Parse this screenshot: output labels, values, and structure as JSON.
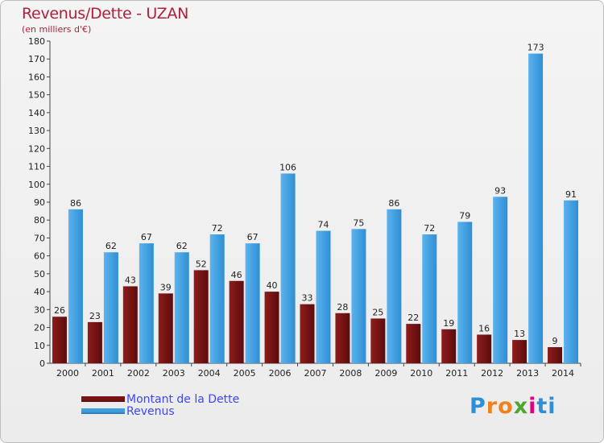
{
  "title": "Revenus/Dette - UZAN",
  "subtitle": "(en milliers d'€)",
  "colors": {
    "dette": "#7a1414",
    "revenus": "#3d9ee0",
    "text": "#b0203a",
    "legend_text": "#3c46ff"
  },
  "logo": {
    "letters": [
      "P",
      "r",
      "o",
      "x",
      "i",
      "t",
      "i"
    ],
    "colors": [
      "#2e8fd6",
      "#f0821e",
      "#f0821e",
      "#4aa832",
      "#e4007c",
      "#2e8fd6",
      "#2e8fd6"
    ]
  },
  "chart_data": {
    "type": "bar",
    "categories": [
      "2000",
      "2001",
      "2002",
      "2003",
      "2004",
      "2005",
      "2006",
      "2007",
      "2008",
      "2009",
      "2010",
      "2011",
      "2012",
      "2013",
      "2014"
    ],
    "series": [
      {
        "name": "Montant de la Dette",
        "values": [
          26,
          23,
          43,
          39,
          52,
          46,
          40,
          33,
          28,
          25,
          22,
          19,
          16,
          13,
          9
        ]
      },
      {
        "name": "Revenus",
        "values": [
          86,
          62,
          67,
          62,
          72,
          67,
          106,
          74,
          75,
          86,
          72,
          79,
          93,
          173,
          91
        ]
      }
    ],
    "ylim": [
      0,
      180
    ],
    "yticks": [
      0,
      10,
      20,
      30,
      40,
      50,
      60,
      70,
      80,
      90,
      100,
      110,
      120,
      130,
      140,
      150,
      160,
      170,
      180
    ],
    "grid": false,
    "legend": "bottom-left"
  }
}
